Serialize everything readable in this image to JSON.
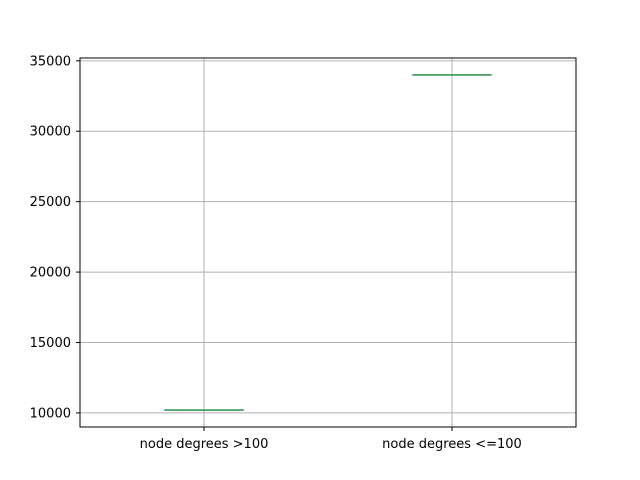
{
  "chart_data": {
    "type": "box",
    "categories": [
      "node degrees >100",
      "node degrees <=100"
    ],
    "series": [
      {
        "values": [
          10200,
          34000
        ]
      }
    ],
    "title": "",
    "xlabel": "",
    "ylabel": "",
    "ylim": [
      9000,
      35200
    ],
    "yticks": [
      10000,
      15000,
      20000,
      25000,
      30000,
      35000
    ],
    "ytick_labels": [
      "10000",
      "15000",
      "20000",
      "25000",
      "30000",
      "35000"
    ],
    "grid": true,
    "colors": {
      "median": "#3a9a5b",
      "grid": "#b0b0b0",
      "axes": "#000000"
    }
  }
}
